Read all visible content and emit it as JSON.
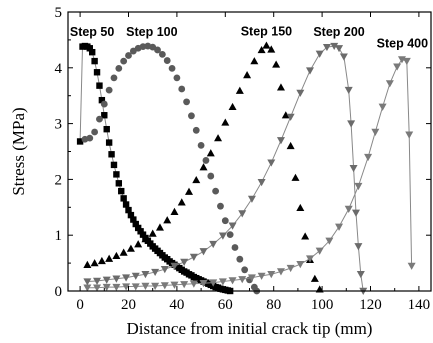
{
  "chart_data": {
    "type": "scatter",
    "title": "",
    "xlabel": "Distance from initial crack tip (mm)",
    "ylabel": "Stress (MPa)",
    "xlim": [
      -5,
      145
    ],
    "ylim": [
      0,
      5
    ],
    "xticks": [
      0,
      20,
      40,
      60,
      80,
      100,
      120,
      140
    ],
    "yticks": [
      0,
      1,
      2,
      3,
      4,
      5
    ],
    "grid": false,
    "legend": "none",
    "series": [
      {
        "name": "Step 50",
        "marker": "square",
        "color": "#000000",
        "line_color": "#888888",
        "points": [
          [
            0,
            2.68
          ],
          [
            1,
            4.38
          ],
          [
            2,
            4.39
          ],
          [
            3,
            4.38
          ],
          [
            4,
            4.35
          ],
          [
            5,
            4.28
          ],
          [
            6,
            4.12
          ],
          [
            7,
            3.92
          ],
          [
            8,
            3.68
          ],
          [
            9,
            3.42
          ],
          [
            10,
            3.15
          ],
          [
            11,
            2.9
          ],
          [
            12,
            2.66
          ],
          [
            13,
            2.45
          ],
          [
            14,
            2.26
          ],
          [
            15,
            2.09
          ],
          [
            16,
            1.93
          ],
          [
            17,
            1.79
          ],
          [
            18,
            1.66
          ],
          [
            19,
            1.55
          ],
          [
            20,
            1.45
          ],
          [
            21,
            1.36
          ],
          [
            22,
            1.28
          ],
          [
            23,
            1.2
          ],
          [
            24,
            1.13
          ],
          [
            25,
            1.07
          ],
          [
            26,
            1.01
          ],
          [
            27,
            0.95
          ],
          [
            28,
            0.9
          ],
          [
            29,
            0.85
          ],
          [
            30,
            0.8
          ],
          [
            31,
            0.76
          ],
          [
            32,
            0.72
          ],
          [
            33,
            0.68
          ],
          [
            34,
            0.64
          ],
          [
            35,
            0.6
          ],
          [
            36,
            0.57
          ],
          [
            37,
            0.53
          ],
          [
            38,
            0.5
          ],
          [
            39,
            0.47
          ],
          [
            40,
            0.44
          ],
          [
            41,
            0.41
          ],
          [
            42,
            0.38
          ],
          [
            43,
            0.35
          ],
          [
            44,
            0.33
          ],
          [
            45,
            0.3
          ],
          [
            46,
            0.28
          ],
          [
            47,
            0.25
          ],
          [
            48,
            0.23
          ],
          [
            49,
            0.21
          ],
          [
            50,
            0.19
          ],
          [
            51,
            0.17
          ],
          [
            52,
            0.15
          ],
          [
            53,
            0.13
          ],
          [
            54,
            0.11
          ],
          [
            55,
            0.09
          ],
          [
            56,
            0.07
          ],
          [
            57,
            0.06
          ],
          [
            58,
            0.04
          ],
          [
            59,
            0.03
          ],
          [
            60,
            0.02
          ],
          [
            61,
            0.01
          ],
          [
            62,
            0.0
          ]
        ]
      },
      {
        "name": "Step 100",
        "marker": "circle",
        "color": "#5a5a5a",
        "line_color": "",
        "points": [
          [
            2,
            2.72
          ],
          [
            4,
            2.74
          ],
          [
            6,
            2.85
          ],
          [
            8,
            3.08
          ],
          [
            10,
            3.35
          ],
          [
            12,
            3.6
          ],
          [
            14,
            3.82
          ],
          [
            16,
            3.99
          ],
          [
            18,
            4.12
          ],
          [
            20,
            4.22
          ],
          [
            22,
            4.3
          ],
          [
            24,
            4.35
          ],
          [
            26,
            4.38
          ],
          [
            28,
            4.39
          ],
          [
            30,
            4.37
          ],
          [
            32,
            4.32
          ],
          [
            34,
            4.24
          ],
          [
            36,
            4.13
          ],
          [
            38,
            3.99
          ],
          [
            40,
            3.82
          ],
          [
            42,
            3.62
          ],
          [
            44,
            3.39
          ],
          [
            46,
            3.14
          ],
          [
            48,
            2.88
          ],
          [
            50,
            2.61
          ],
          [
            52,
            2.34
          ],
          [
            54,
            2.06
          ],
          [
            56,
            1.79
          ],
          [
            58,
            1.52
          ],
          [
            60,
            1.26
          ],
          [
            62,
            1.01
          ],
          [
            64,
            0.78
          ],
          [
            66,
            0.57
          ],
          [
            68,
            0.38
          ],
          [
            70,
            0.2
          ],
          [
            72,
            0.07
          ],
          [
            73,
            0.0
          ]
        ]
      },
      {
        "name": "Step 150",
        "marker": "triangle-up",
        "color": "#000000",
        "line_color": "",
        "points": [
          [
            3,
            0.47
          ],
          [
            6,
            0.5
          ],
          [
            9,
            0.54
          ],
          [
            12,
            0.58
          ],
          [
            15,
            0.63
          ],
          [
            18,
            0.69
          ],
          [
            21,
            0.76
          ],
          [
            24,
            0.84
          ],
          [
            27,
            0.93
          ],
          [
            30,
            1.03
          ],
          [
            33,
            1.14
          ],
          [
            36,
            1.27
          ],
          [
            39,
            1.42
          ],
          [
            42,
            1.59
          ],
          [
            45,
            1.78
          ],
          [
            48,
            1.99
          ],
          [
            51,
            2.22
          ],
          [
            54,
            2.47
          ],
          [
            57,
            2.74
          ],
          [
            60,
            3.02
          ],
          [
            63,
            3.3
          ],
          [
            66,
            3.59
          ],
          [
            69,
            3.87
          ],
          [
            72,
            4.12
          ],
          [
            75,
            4.32
          ],
          [
            77,
            4.4
          ],
          [
            79,
            4.33
          ],
          [
            81,
            4.06
          ],
          [
            83,
            3.65
          ],
          [
            85,
            3.15
          ],
          [
            87,
            2.6
          ],
          [
            89,
            2.03
          ],
          [
            91,
            1.49
          ],
          [
            93,
            0.98
          ],
          [
            95,
            0.56
          ],
          [
            97,
            0.22
          ],
          [
            99,
            0.03
          ]
        ]
      },
      {
        "name": "Step 200",
        "marker": "triangle-down",
        "color": "#6b6b6b",
        "line_color": "#888888",
        "points": [
          [
            3,
            0.17
          ],
          [
            7,
            0.18
          ],
          [
            11,
            0.2
          ],
          [
            15,
            0.22
          ],
          [
            19,
            0.24
          ],
          [
            23,
            0.27
          ],
          [
            27,
            0.3
          ],
          [
            31,
            0.34
          ],
          [
            35,
            0.39
          ],
          [
            39,
            0.45
          ],
          [
            43,
            0.52
          ],
          [
            47,
            0.61
          ],
          [
            51,
            0.71
          ],
          [
            55,
            0.84
          ],
          [
            59,
            0.99
          ],
          [
            63,
            1.17
          ],
          [
            67,
            1.39
          ],
          [
            71,
            1.65
          ],
          [
            75,
            1.95
          ],
          [
            79,
            2.3
          ],
          [
            83,
            2.7
          ],
          [
            87,
            3.12
          ],
          [
            91,
            3.55
          ],
          [
            95,
            3.95
          ],
          [
            99,
            4.25
          ],
          [
            102,
            4.37
          ],
          [
            105,
            4.39
          ],
          [
            107,
            4.35
          ],
          [
            109,
            4.2
          ],
          [
            111,
            3.6
          ],
          [
            112,
            3.0
          ],
          [
            113,
            2.2
          ],
          [
            114,
            1.4
          ],
          [
            115,
            0.8
          ],
          [
            116,
            0.3
          ],
          [
            117,
            0.0
          ]
        ]
      },
      {
        "name": "Step 400",
        "marker": "triangle-down",
        "color": "#7a7a7a",
        "line_color": "#888888",
        "points": [
          [
            3,
            0.06
          ],
          [
            7,
            0.06
          ],
          [
            11,
            0.07
          ],
          [
            15,
            0.07
          ],
          [
            19,
            0.08
          ],
          [
            23,
            0.08
          ],
          [
            27,
            0.09
          ],
          [
            31,
            0.09
          ],
          [
            35,
            0.1
          ],
          [
            39,
            0.11
          ],
          [
            43,
            0.12
          ],
          [
            47,
            0.13
          ],
          [
            51,
            0.14
          ],
          [
            55,
            0.15
          ],
          [
            59,
            0.17
          ],
          [
            63,
            0.19
          ],
          [
            67,
            0.21
          ],
          [
            71,
            0.24
          ],
          [
            75,
            0.27
          ],
          [
            79,
            0.3
          ],
          [
            83,
            0.35
          ],
          [
            87,
            0.41
          ],
          [
            91,
            0.48
          ],
          [
            95,
            0.58
          ],
          [
            99,
            0.72
          ],
          [
            103,
            0.9
          ],
          [
            107,
            1.15
          ],
          [
            111,
            1.47
          ],
          [
            115,
            1.88
          ],
          [
            119,
            2.4
          ],
          [
            122,
            2.85
          ],
          [
            125,
            3.3
          ],
          [
            128,
            3.72
          ],
          [
            131,
            4.02
          ],
          [
            133,
            4.15
          ],
          [
            135,
            4.12
          ],
          [
            136,
            2.8
          ],
          [
            137,
            0.45
          ]
        ]
      }
    ]
  }
}
